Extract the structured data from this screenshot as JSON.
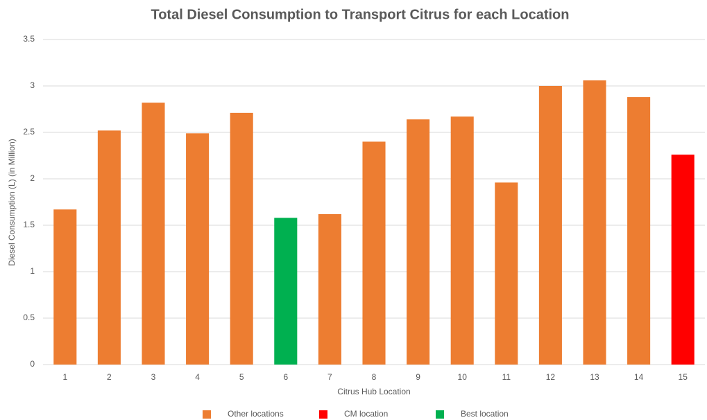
{
  "chart_data": {
    "type": "bar",
    "title": "Total Diesel Consumption to Transport Citrus for each Location",
    "x_label": "Citrus Hub Location",
    "y_label": "Diesel Consumption  (L) (in Million)",
    "categories": [
      "1",
      "2",
      "3",
      "4",
      "5",
      "6",
      "7",
      "8",
      "9",
      "10",
      "11",
      "12",
      "13",
      "14",
      "15"
    ],
    "series": [
      {
        "name": "Other locations",
        "color": "#ed7d31",
        "values": [
          1.67,
          2.52,
          2.82,
          2.49,
          2.71,
          null,
          1.62,
          2.4,
          2.64,
          2.67,
          1.96,
          3.0,
          3.06,
          2.88,
          null
        ]
      },
      {
        "name": "CM location",
        "color": "#ff0000",
        "values": [
          null,
          null,
          null,
          null,
          null,
          null,
          null,
          null,
          null,
          null,
          null,
          null,
          null,
          null,
          2.26
        ]
      },
      {
        "name": "Best location",
        "color": "#00b050",
        "values": [
          null,
          null,
          null,
          null,
          null,
          1.58,
          null,
          null,
          null,
          null,
          null,
          null,
          null,
          null,
          null
        ]
      }
    ],
    "ylim": [
      0,
      3.5
    ],
    "yticks": [
      0,
      0.5,
      1,
      1.5,
      2,
      2.5,
      3,
      3.5
    ],
    "grid": true,
    "legend": "bottom"
  }
}
